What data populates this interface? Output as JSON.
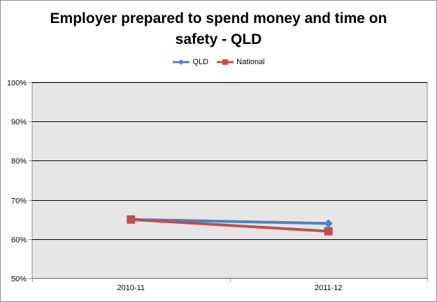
{
  "chart_data": {
    "type": "line",
    "title": [
      "Employer prepared to spend money and time on",
      "safety - QLD"
    ],
    "categories": [
      "2010-11",
      "2011-12"
    ],
    "series": [
      {
        "name": "QLD",
        "values": [
          0.65,
          0.64
        ],
        "color": "#4f81bd",
        "marker": "diamond"
      },
      {
        "name": "National",
        "values": [
          0.65,
          0.62
        ],
        "color": "#c0504d",
        "marker": "square"
      }
    ],
    "ylim": [
      0.5,
      1.0
    ],
    "yticks": [
      {
        "value": 0.5,
        "label": "50%"
      },
      {
        "value": 0.6,
        "label": "60%"
      },
      {
        "value": 0.7,
        "label": "70%"
      },
      {
        "value": 0.8,
        "label": "80%"
      },
      {
        "value": 0.9,
        "label": "90%"
      },
      {
        "value": 1.0,
        "label": "100%"
      }
    ],
    "grid": true,
    "legend_position": "top",
    "plot_background": "#e6e6e6"
  }
}
